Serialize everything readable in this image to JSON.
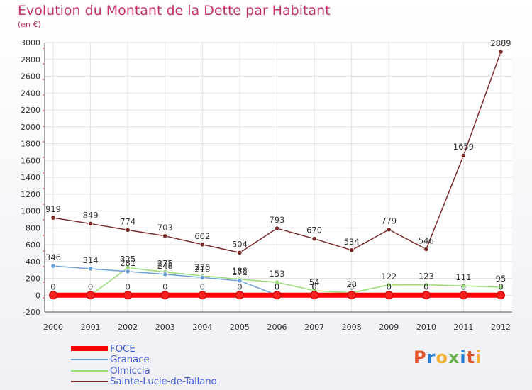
{
  "header": {
    "title": "Evolution du Montant de la Dette par Habitant",
    "subtitle": "(en €)"
  },
  "logo": {
    "text": "Proxiti"
  },
  "chart_data": {
    "type": "line",
    "title": "Evolution du Montant de la Dette par Habitant",
    "subtitle": "(en €)",
    "xlabel": "",
    "ylabel": "",
    "x": [
      "2000",
      "2001",
      "2002",
      "2003",
      "2004",
      "2005",
      "2006",
      "2007",
      "2008",
      "2009",
      "2010",
      "2011",
      "2012"
    ],
    "ylim": [
      -200,
      3000
    ],
    "yticks": [
      -200,
      0,
      200,
      400,
      600,
      800,
      1000,
      1200,
      1400,
      1600,
      1800,
      2000,
      2200,
      2400,
      2600,
      2800,
      3000
    ],
    "grid": true,
    "legend_position": "bottom-left",
    "series": [
      {
        "name": "FOCE",
        "color": "#ff0000",
        "values": [
          0,
          0,
          0,
          0,
          0,
          0,
          0,
          0,
          0,
          0,
          0,
          0,
          0
        ]
      },
      {
        "name": "Granace",
        "color": "#6b9fd4",
        "values": [
          346,
          314,
          281,
          248,
          210,
          171,
          0,
          0,
          0,
          0,
          0,
          0,
          0
        ]
      },
      {
        "name": "Olmiccia",
        "color": "#99dd77",
        "values": [
          0,
          0,
          325,
          275,
          230,
          188,
          153,
          54,
          28,
          122,
          123,
          111,
          95
        ]
      },
      {
        "name": "Sainte-Lucie-de-Tallano",
        "color": "#7a2a2a",
        "values": [
          919,
          849,
          774,
          703,
          602,
          504,
          793,
          670,
          534,
          779,
          546,
          1659,
          2889
        ]
      }
    ]
  }
}
